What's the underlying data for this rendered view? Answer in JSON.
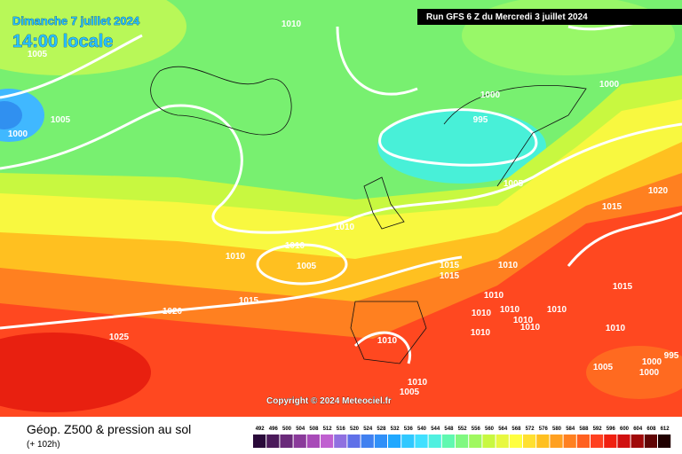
{
  "header": {
    "date": "Dimanche 7 juillet 2024",
    "time": "14:00 locale",
    "run": "Run GFS 6 Z du Mercredi 3 juillet 2024"
  },
  "isobar_labels": [
    1010,
    1005,
    1005,
    1000,
    1000,
    995,
    1000,
    1005,
    1020,
    1015,
    1010,
    1010,
    1010,
    1005,
    1015,
    1010,
    1015,
    1015,
    1020,
    1010,
    1010,
    1010,
    1010,
    1010,
    1010,
    1010,
    1015,
    1010,
    1025,
    1010,
    1005,
    995,
    1000,
    1000,
    1010,
    1005
  ],
  "footer": {
    "copyright": "Copyright © 2024 Meteociel.fr",
    "product": "Géop. Z500 & pression au sol",
    "lead": "(+ 102h)"
  },
  "legend": {
    "values": [
      492,
      496,
      500,
      504,
      508,
      512,
      516,
      520,
      524,
      528,
      532,
      536,
      540,
      544,
      548,
      552,
      556,
      560,
      564,
      568,
      572,
      576,
      580,
      584,
      588,
      592,
      596,
      600,
      604,
      608,
      612
    ],
    "colors": [
      "#2a0a3a",
      "#4b1a5a",
      "#6a2a7a",
      "#8a3a9a",
      "#a84ab8",
      "#c060d0",
      "#9070e0",
      "#6070e8",
      "#4080f0",
      "#3090f8",
      "#20a8ff",
      "#30c8ff",
      "#40e0ff",
      "#50f0e0",
      "#60f8b0",
      "#80f880",
      "#a0f860",
      "#c8f840",
      "#e8f840",
      "#ffff40",
      "#ffe030",
      "#ffc020",
      "#ffa020",
      "#ff8020",
      "#ff6020",
      "#ff4020",
      "#f02010",
      "#d01010",
      "#a00808",
      "#600404",
      "#200000"
    ]
  }
}
